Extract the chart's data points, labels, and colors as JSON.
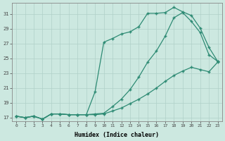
{
  "xlabel": "Humidex (Indice chaleur)",
  "ylabel": "",
  "xlim": [
    -0.5,
    23.5
  ],
  "ylim": [
    16.5,
    32.5
  ],
  "xticks": [
    0,
    1,
    2,
    3,
    4,
    5,
    6,
    7,
    8,
    9,
    10,
    11,
    12,
    13,
    14,
    15,
    16,
    17,
    18,
    19,
    20,
    21,
    22,
    23
  ],
  "yticks": [
    17,
    19,
    21,
    23,
    25,
    27,
    29,
    31
  ],
  "line_color": "#2e8b74",
  "bg_color": "#cce8e0",
  "grid_color": "#b0d0c8",
  "line1_x": [
    0,
    1,
    2,
    3,
    4,
    5,
    6,
    7,
    8,
    9,
    10,
    11,
    12,
    13,
    14,
    15,
    16,
    17,
    18,
    19,
    20,
    21,
    22,
    23
  ],
  "line1_y": [
    17.2,
    17.0,
    17.2,
    16.8,
    17.5,
    17.5,
    17.4,
    17.4,
    17.4,
    20.5,
    27.2,
    27.7,
    28.3,
    28.6,
    29.3,
    31.1,
    31.1,
    31.2,
    31.9,
    31.3,
    30.8,
    29.1,
    26.5,
    24.6
  ],
  "line2_x": [
    0,
    1,
    2,
    3,
    4,
    5,
    6,
    7,
    8,
    9,
    10,
    11,
    12,
    13,
    14,
    15,
    16,
    17,
    18,
    19,
    20,
    21,
    22,
    23
  ],
  "line2_y": [
    17.2,
    17.0,
    17.2,
    16.8,
    17.5,
    17.5,
    17.4,
    17.4,
    17.4,
    17.5,
    17.6,
    18.5,
    19.5,
    20.8,
    22.5,
    24.5,
    26.0,
    28.0,
    30.5,
    31.2,
    30.0,
    28.5,
    25.5,
    24.6
  ],
  "line3_x": [
    0,
    1,
    2,
    3,
    4,
    5,
    6,
    7,
    8,
    9,
    10,
    11,
    12,
    13,
    14,
    15,
    16,
    17,
    18,
    19,
    20,
    21,
    22,
    23
  ],
  "line3_y": [
    17.2,
    17.0,
    17.2,
    16.8,
    17.5,
    17.5,
    17.4,
    17.4,
    17.4,
    17.4,
    17.5,
    17.9,
    18.3,
    18.9,
    19.5,
    20.2,
    21.0,
    21.9,
    22.7,
    23.3,
    23.8,
    23.5,
    23.2,
    24.5
  ]
}
